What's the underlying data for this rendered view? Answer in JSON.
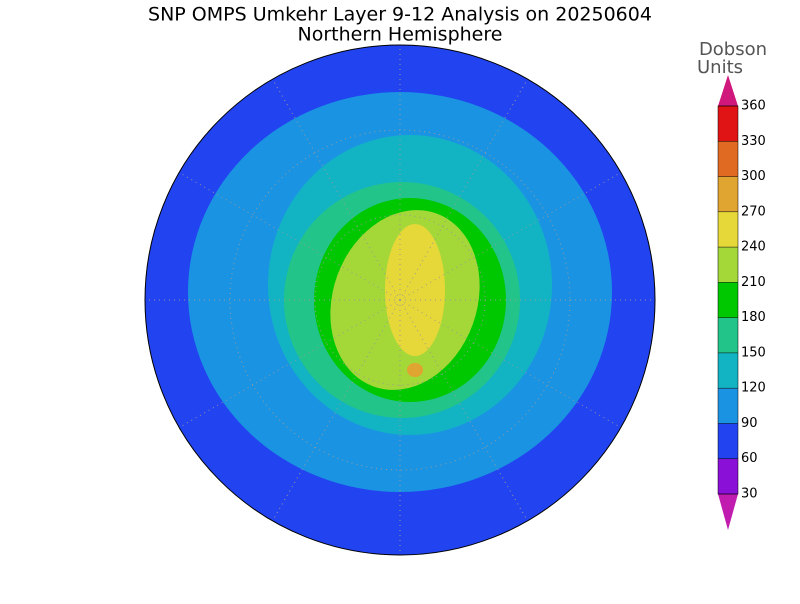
{
  "title": "SNP OMPS Umkehr Layer 9-12 Analysis on 20250604",
  "subtitle": "Northern Hemisphere",
  "colorbar": {
    "units_label_lines": [
      "Dobson",
      "Units"
    ],
    "ticks": [
      30,
      60,
      90,
      120,
      150,
      180,
      210,
      240,
      270,
      300,
      330,
      360
    ],
    "colors": [
      "#c01cb0",
      "#8a10d8",
      "#2244f0",
      "#1a94e2",
      "#12b4c4",
      "#22c48a",
      "#00c800",
      "#a4d838",
      "#e6d838",
      "#e0a430",
      "#e06a22",
      "#e01414",
      "#d0187c"
    ]
  }
}
